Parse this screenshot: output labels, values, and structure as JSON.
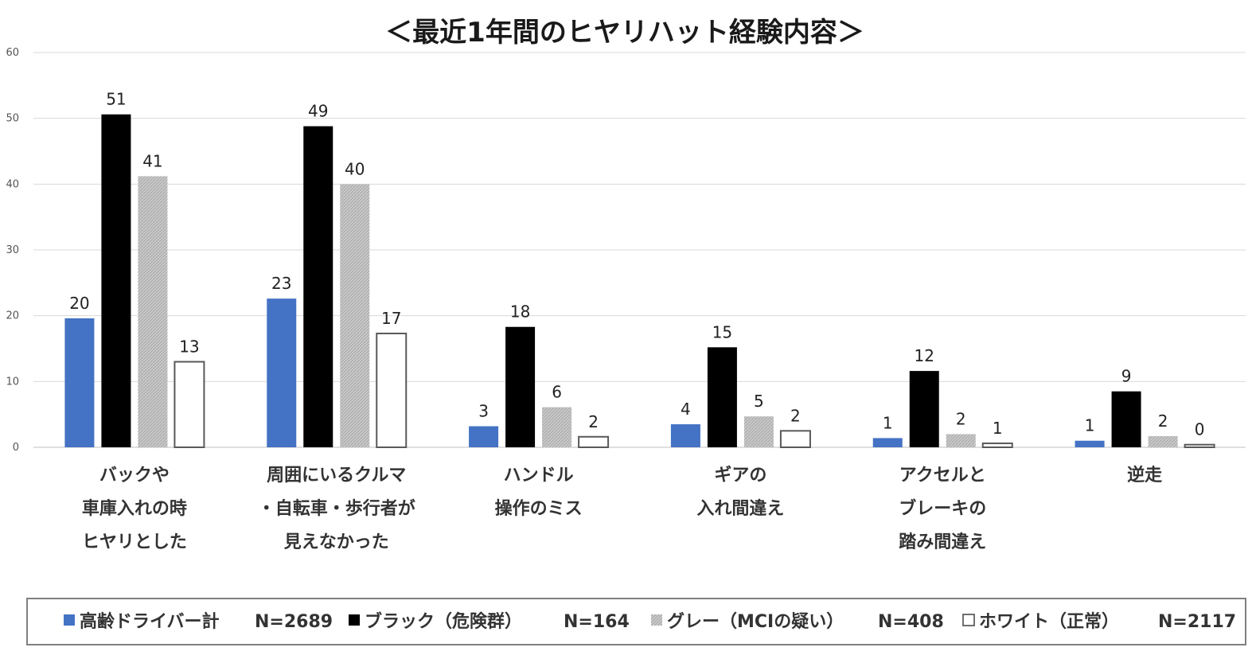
{
  "chart_data": {
    "type": "bar",
    "title": "＜最近1年間のヒヤリハット経験内容＞",
    "xlabel": "",
    "ylabel": "",
    "ylim": [
      0,
      60
    ],
    "yticks": [
      0,
      10,
      20,
      30,
      40,
      50,
      60
    ],
    "grid": true,
    "legend_placement": "bottom",
    "categories": [
      [
        "バックや",
        "車庫入れの時",
        "ヒヤリとした"
      ],
      [
        "周囲にいるクルマ",
        "・自転車・歩行者が",
        "見えなかった"
      ],
      [
        "ハンドル",
        "操作のミス"
      ],
      [
        "ギアの",
        "入れ間違え"
      ],
      [
        "アクセルと",
        "ブレーキの",
        "踏み間違え"
      ],
      [
        "逆走"
      ]
    ],
    "series": [
      {
        "name": "高齢ドライバー計",
        "n_label": "N=2689",
        "color": "#4472C4",
        "pattern": "solid",
        "values": [
          19.6,
          22.6,
          3.2,
          3.5,
          1.4,
          1.0
        ],
        "labels": [
          "20",
          "23",
          "3",
          "4",
          "1",
          "1"
        ]
      },
      {
        "name": "ブラック（危険群）",
        "n_label": "N=164",
        "color": "#000000",
        "pattern": "solid",
        "values": [
          50.6,
          48.8,
          18.3,
          15.2,
          11.6,
          8.5
        ],
        "labels": [
          "51",
          "49",
          "18",
          "15",
          "12",
          "9"
        ]
      },
      {
        "name": "グレー（MCIの疑い）",
        "n_label": "N=408",
        "color": "#BFBFBF",
        "pattern": "hatch",
        "values": [
          41.2,
          40.0,
          6.1,
          4.7,
          2.0,
          1.7
        ],
        "labels": [
          "41",
          "40",
          "6",
          "5",
          "2",
          "2"
        ]
      },
      {
        "name": "ホワイト（正常）",
        "n_label": "N=2117",
        "color": "#FFFFFF",
        "pattern": "outline",
        "values": [
          13.0,
          17.3,
          1.6,
          2.5,
          0.6,
          0.4
        ],
        "labels": [
          "13",
          "17",
          "2",
          "2",
          "1",
          "0"
        ]
      }
    ]
  }
}
